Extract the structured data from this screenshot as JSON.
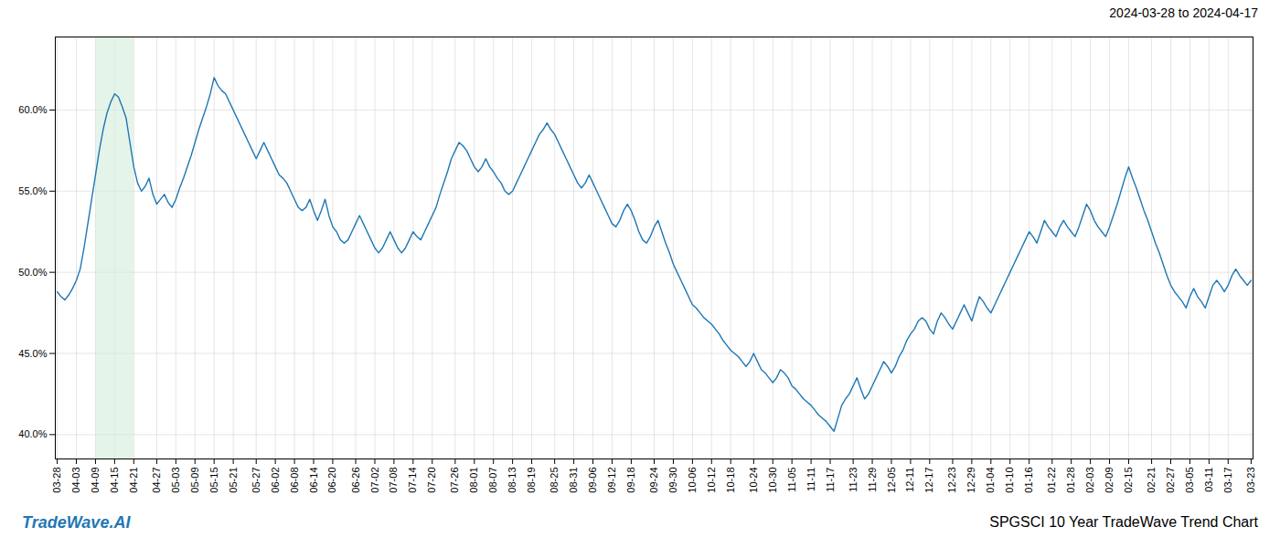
{
  "chart_data": {
    "type": "line",
    "title": "SPGSCI 10 Year TradeWave Trend Chart",
    "subtitle": "2024-03-28 to 2024-04-17",
    "annotations": [
      "TradeWave.AI"
    ],
    "color": "#1f77b4",
    "grid": true,
    "ylim": [
      38.5,
      64.5
    ],
    "yticks": [
      {
        "value": 40.0,
        "label": "40.0%"
      },
      {
        "value": 45.0,
        "label": "45.0%"
      },
      {
        "value": 50.0,
        "label": "50.0%"
      },
      {
        "value": 55.0,
        "label": "55.0%"
      },
      {
        "value": 60.0,
        "label": "60.0%"
      }
    ],
    "shade": {
      "from": "04-09",
      "to": "04-21",
      "color": "#d4edda"
    },
    "categories": [
      "03-28",
      null,
      null,
      null,
      null,
      "04-03",
      null,
      null,
      null,
      null,
      "04-09",
      null,
      null,
      null,
      null,
      "04-15",
      null,
      null,
      null,
      null,
      "04-21",
      null,
      null,
      null,
      null,
      null,
      "04-27",
      null,
      null,
      null,
      null,
      "05-03",
      null,
      null,
      null,
      null,
      "05-09",
      null,
      null,
      null,
      null,
      "05-15",
      null,
      null,
      null,
      null,
      "05-21",
      null,
      null,
      null,
      null,
      null,
      "05-27",
      null,
      null,
      null,
      null,
      "06-02",
      null,
      null,
      null,
      null,
      "06-08",
      null,
      null,
      null,
      null,
      "06-14",
      null,
      null,
      null,
      null,
      "06-20",
      null,
      null,
      null,
      null,
      null,
      "06-26",
      null,
      null,
      null,
      null,
      "07-02",
      null,
      null,
      null,
      null,
      "07-08",
      null,
      null,
      null,
      null,
      "07-14",
      null,
      null,
      null,
      null,
      "07-20",
      null,
      null,
      null,
      null,
      null,
      "07-26",
      null,
      null,
      null,
      null,
      "08-01",
      null,
      null,
      null,
      null,
      "08-07",
      null,
      null,
      null,
      null,
      "08-13",
      null,
      null,
      null,
      null,
      "08-19",
      null,
      null,
      null,
      null,
      null,
      "08-25",
      null,
      null,
      null,
      null,
      "08-31",
      null,
      null,
      null,
      null,
      "09-06",
      null,
      null,
      null,
      null,
      "09-12",
      null,
      null,
      null,
      null,
      "09-18",
      null,
      null,
      null,
      null,
      null,
      "09-24",
      null,
      null,
      null,
      null,
      "09-30",
      null,
      null,
      null,
      null,
      "10-06",
      null,
      null,
      null,
      null,
      "10-12",
      null,
      null,
      null,
      null,
      "10-18",
      null,
      null,
      null,
      null,
      null,
      "10-24",
      null,
      null,
      null,
      null,
      "10-30",
      null,
      null,
      null,
      null,
      "11-05",
      null,
      null,
      null,
      null,
      "11-11",
      null,
      null,
      null,
      null,
      "11-17",
      null,
      null,
      null,
      null,
      null,
      "11-23",
      null,
      null,
      null,
      null,
      "11-29",
      null,
      null,
      null,
      null,
      "12-05",
      null,
      null,
      null,
      null,
      "12-11",
      null,
      null,
      null,
      null,
      "12-17",
      null,
      null,
      null,
      null,
      null,
      "12-23",
      null,
      null,
      null,
      null,
      "12-29",
      null,
      null,
      null,
      null,
      "01-04",
      null,
      null,
      null,
      null,
      "01-10",
      null,
      null,
      null,
      null,
      "01-16",
      null,
      null,
      null,
      null,
      null,
      "01-22",
      null,
      null,
      null,
      null,
      "01-28",
      null,
      null,
      null,
      null,
      "02-03",
      null,
      null,
      null,
      null,
      "02-09",
      null,
      null,
      null,
      null,
      "02-15",
      null,
      null,
      null,
      null,
      null,
      "02-21",
      null,
      null,
      null,
      null,
      "02-27",
      null,
      null,
      null,
      null,
      "03-05",
      null,
      null,
      null,
      null,
      "03-11",
      null,
      null,
      null,
      null,
      "03-17",
      null,
      null,
      null,
      null,
      null,
      "03-23"
    ],
    "values": [
      48.8,
      48.5,
      48.3,
      48.6,
      49.0,
      49.5,
      50.2,
      51.5,
      53.0,
      54.5,
      56.0,
      57.5,
      58.8,
      59.8,
      60.5,
      61.0,
      60.8,
      60.2,
      59.5,
      58.0,
      56.5,
      55.5,
      55.0,
      55.3,
      55.8,
      54.8,
      54.2,
      54.5,
      54.8,
      54.3,
      54.0,
      54.5,
      55.2,
      55.8,
      56.5,
      57.2,
      58.0,
      58.8,
      59.5,
      60.2,
      61.0,
      62.0,
      61.5,
      61.2,
      61.0,
      60.5,
      60.0,
      59.5,
      59.0,
      58.5,
      58.0,
      57.5,
      57.0,
      57.5,
      58.0,
      57.5,
      57.0,
      56.5,
      56.0,
      55.8,
      55.5,
      55.0,
      54.5,
      54.0,
      53.8,
      54.0,
      54.5,
      53.8,
      53.2,
      53.8,
      54.5,
      53.5,
      52.8,
      52.5,
      52.0,
      51.8,
      52.0,
      52.5,
      53.0,
      53.5,
      53.0,
      52.5,
      52.0,
      51.5,
      51.2,
      51.5,
      52.0,
      52.5,
      52.0,
      51.5,
      51.2,
      51.5,
      52.0,
      52.5,
      52.2,
      52.0,
      52.5,
      53.0,
      53.5,
      54.0,
      54.8,
      55.5,
      56.2,
      57.0,
      57.5,
      58.0,
      57.8,
      57.5,
      57.0,
      56.5,
      56.2,
      56.5,
      57.0,
      56.5,
      56.2,
      55.8,
      55.5,
      55.0,
      54.8,
      55.0,
      55.5,
      56.0,
      56.5,
      57.0,
      57.5,
      58.0,
      58.5,
      58.8,
      59.2,
      58.8,
      58.5,
      58.0,
      57.5,
      57.0,
      56.5,
      56.0,
      55.5,
      55.2,
      55.5,
      56.0,
      55.5,
      55.0,
      54.5,
      54.0,
      53.5,
      53.0,
      52.8,
      53.2,
      53.8,
      54.2,
      53.8,
      53.2,
      52.5,
      52.0,
      51.8,
      52.2,
      52.8,
      53.2,
      52.5,
      51.8,
      51.2,
      50.5,
      50.0,
      49.5,
      49.0,
      48.5,
      48.0,
      47.8,
      47.5,
      47.2,
      47.0,
      46.8,
      46.5,
      46.2,
      45.8,
      45.5,
      45.2,
      45.0,
      44.8,
      44.5,
      44.2,
      44.5,
      45.0,
      44.5,
      44.0,
      43.8,
      43.5,
      43.2,
      43.5,
      44.0,
      43.8,
      43.5,
      43.0,
      42.8,
      42.5,
      42.2,
      42.0,
      41.8,
      41.5,
      41.2,
      41.0,
      40.8,
      40.5,
      40.2,
      41.0,
      41.8,
      42.2,
      42.5,
      43.0,
      43.5,
      42.8,
      42.2,
      42.5,
      43.0,
      43.5,
      44.0,
      44.5,
      44.2,
      43.8,
      44.2,
      44.8,
      45.2,
      45.8,
      46.2,
      46.5,
      47.0,
      47.2,
      47.0,
      46.5,
      46.2,
      47.0,
      47.5,
      47.2,
      46.8,
      46.5,
      47.0,
      47.5,
      48.0,
      47.5,
      47.0,
      47.8,
      48.5,
      48.2,
      47.8,
      47.5,
      48.0,
      48.5,
      49.0,
      49.5,
      50.0,
      50.5,
      51.0,
      51.5,
      52.0,
      52.5,
      52.2,
      51.8,
      52.5,
      53.2,
      52.8,
      52.5,
      52.2,
      52.8,
      53.2,
      52.8,
      52.5,
      52.2,
      52.8,
      53.5,
      54.2,
      53.8,
      53.2,
      52.8,
      52.5,
      52.2,
      52.8,
      53.5,
      54.2,
      55.0,
      55.8,
      56.5,
      55.8,
      55.2,
      54.5,
      53.8,
      53.2,
      52.5,
      51.8,
      51.2,
      50.5,
      49.8,
      49.2,
      48.8,
      48.5,
      48.2,
      47.8,
      48.5,
      49.0,
      48.5,
      48.2,
      47.8,
      48.5,
      49.2,
      49.5,
      49.2,
      48.8,
      49.2,
      49.8,
      50.2,
      49.8,
      49.5,
      49.2,
      49.5
    ]
  }
}
